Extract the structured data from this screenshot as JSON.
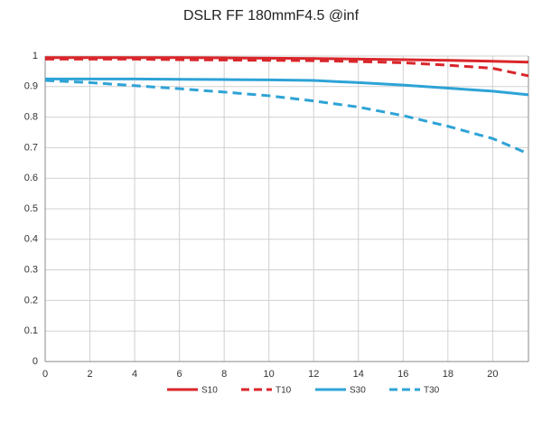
{
  "chart_data": {
    "type": "line",
    "title": "DSLR FF 180mmF4.5 @inf",
    "x": [
      0,
      2,
      4,
      6,
      8,
      10,
      12,
      14,
      16,
      18,
      20,
      21.6
    ],
    "series": [
      {
        "name": "S10",
        "color": "#d9262b",
        "dash": false,
        "values": [
          0.995,
          0.995,
          0.995,
          0.995,
          0.994,
          0.993,
          0.992,
          0.99,
          0.988,
          0.986,
          0.983,
          0.98
        ]
      },
      {
        "name": "T10",
        "color": "#d9262b",
        "dash": true,
        "values": [
          0.99,
          0.99,
          0.99,
          0.988,
          0.987,
          0.986,
          0.985,
          0.982,
          0.978,
          0.97,
          0.96,
          0.935
        ]
      },
      {
        "name": "S30",
        "color": "#2ea3d6",
        "dash": false,
        "values": [
          0.925,
          0.925,
          0.925,
          0.924,
          0.923,
          0.922,
          0.92,
          0.913,
          0.905,
          0.895,
          0.885,
          0.873
        ]
      },
      {
        "name": "T30",
        "color": "#2ea3d6",
        "dash": true,
        "values": [
          0.92,
          0.913,
          0.903,
          0.893,
          0.882,
          0.87,
          0.853,
          0.833,
          0.805,
          0.77,
          0.73,
          0.68
        ]
      }
    ],
    "xlim": [
      0,
      21.6
    ],
    "ylim": [
      0,
      1
    ],
    "xticks": [
      0,
      2,
      4,
      6,
      8,
      10,
      12,
      14,
      16,
      18,
      20
    ],
    "yticks": [
      0,
      0.1,
      0.2,
      0.3,
      0.4,
      0.5,
      0.6,
      0.7,
      0.8,
      0.9,
      1
    ],
    "grid": true
  }
}
